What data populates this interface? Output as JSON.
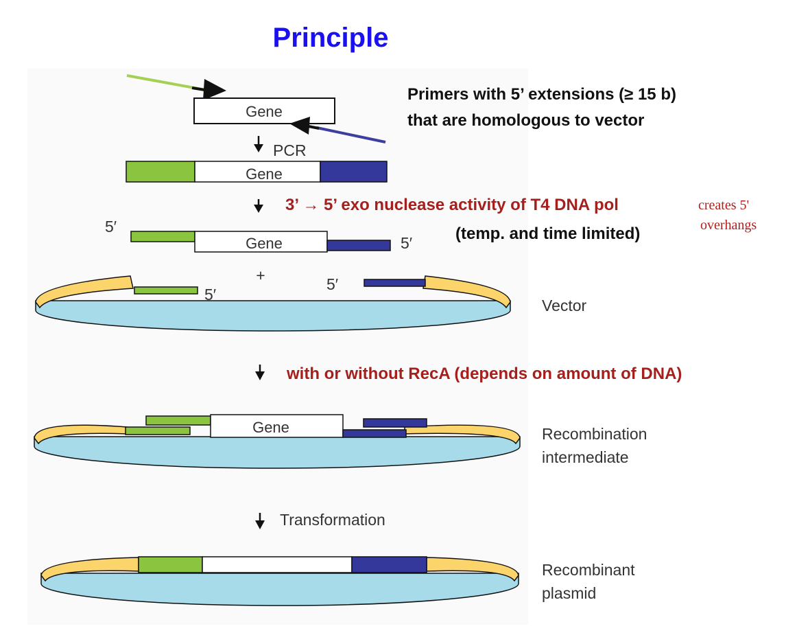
{
  "title": "Principle",
  "primers_note": {
    "line1": "Primers with 5’ extensions (≥ 15 b)",
    "line2": "that are homologous to vector"
  },
  "steps": {
    "pcr": "PCR",
    "exo": "3’ → 5’ exo nuclease activity of T4 DNA pol",
    "exo_condition": "(temp. and time limited)",
    "exo_side_line1": "creates 5'",
    "exo_side_line2": "overhangs",
    "reca": "with or without RecA (depends on amount of DNA)",
    "transformation": "Transformation"
  },
  "labels": {
    "gene": "Gene",
    "five_prime": "5′",
    "plus": "+",
    "vector": "Vector",
    "intermediate_line1": "Recombination",
    "intermediate_line2": "intermediate",
    "plasmid_line1": "Recombinant",
    "plasmid_line2": "plasmid"
  },
  "colors": {
    "title_blue": "#1a10f0",
    "red_text": "#a5201c",
    "green_segment": "#8bc43f",
    "blue_segment": "#33389a",
    "vector_yellow": "#fbd56b",
    "vector_cyan": "#a8dbe9",
    "primer_green": "#a6cf55",
    "primer_blue": "#3d3f9e"
  }
}
